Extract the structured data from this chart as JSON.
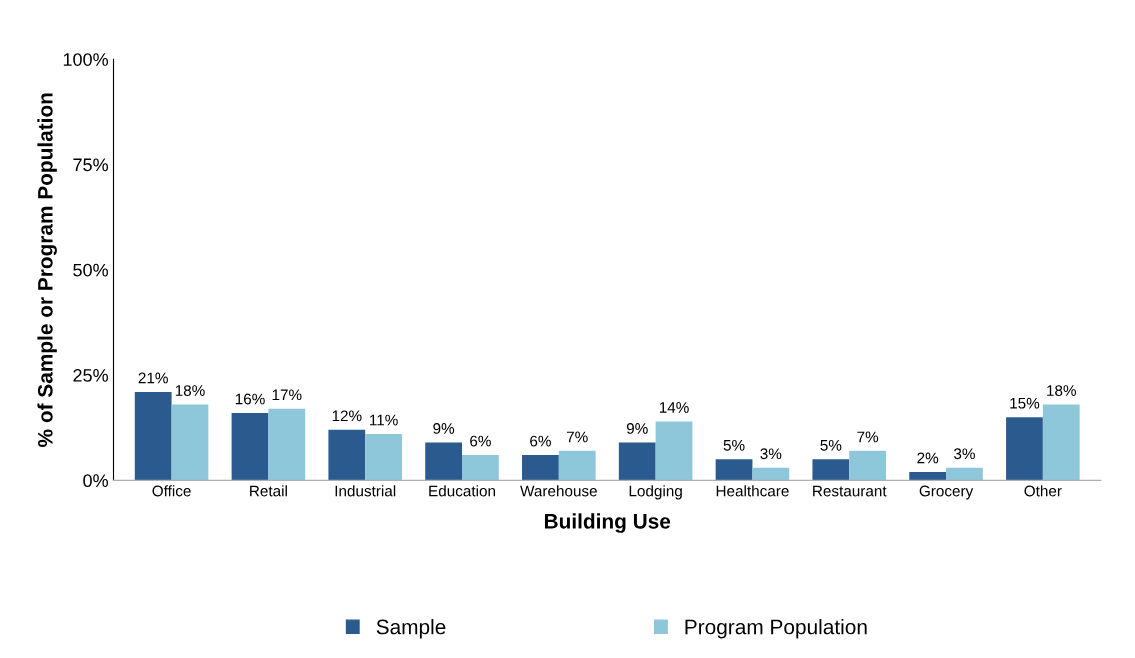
{
  "chart_data": {
    "type": "bar",
    "xlabel": "Building Use",
    "ylabel": "% of Sample or Program Population",
    "categories": [
      "Office",
      "Retail",
      "Industrial",
      "Education",
      "Warehouse",
      "Lodging",
      "Healthcare",
      "Restaurant",
      "Grocery",
      "Other"
    ],
    "series": [
      {
        "name": "Sample",
        "color": "#2b5b8e",
        "values": [
          21,
          16,
          12,
          9,
          6,
          9,
          5,
          5,
          2,
          15
        ],
        "value_labels": [
          "21%",
          "16%",
          "12%",
          "9%",
          "6%",
          "9%",
          "5%",
          "5%",
          "2%",
          "15%"
        ]
      },
      {
        "name": "Program Population",
        "color": "#8ec6da",
        "values": [
          18,
          17,
          11,
          6,
          7,
          14,
          3,
          7,
          3,
          18
        ],
        "value_labels": [
          "18%",
          "17%",
          "11%",
          "6%",
          "7%",
          "14%",
          "3%",
          "7%",
          "3%",
          "18%"
        ]
      }
    ],
    "ylim": [
      0,
      100
    ],
    "yticks": [
      {
        "value": 0,
        "label": "0%"
      },
      {
        "value": 25,
        "label": "25%"
      },
      {
        "value": 50,
        "label": "50%"
      },
      {
        "value": 75,
        "label": "75%"
      },
      {
        "value": 100,
        "label": "100%"
      }
    ],
    "grid": false,
    "legend": "bottom"
  }
}
